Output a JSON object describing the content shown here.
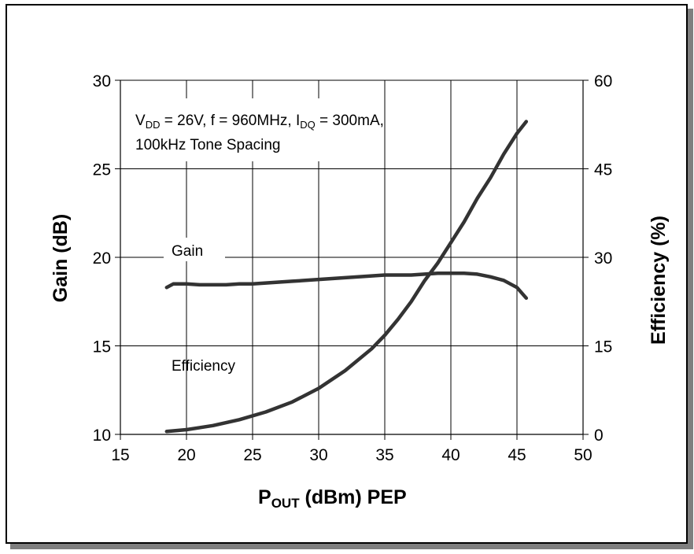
{
  "chart_data": {
    "type": "line",
    "title": "",
    "x_axis": {
      "label_main": "P",
      "label_sub": "OUT",
      "label_rest": " (dBm) PEP",
      "range": [
        15,
        50
      ],
      "ticks": [
        "15",
        "20",
        "25",
        "30",
        "35",
        "40",
        "45",
        "50"
      ]
    },
    "y_left": {
      "label": "Gain (dB)",
      "range": [
        10,
        30
      ],
      "ticks": [
        "10",
        "15",
        "20",
        "25",
        "30"
      ]
    },
    "y_right": {
      "label": "Efficiency (%)",
      "range": [
        0,
        60
      ],
      "ticks": [
        "0",
        "15",
        "30",
        "45",
        "60"
      ]
    },
    "grid": true,
    "annotation": {
      "vdd_main": "V",
      "vdd_sub": "DD",
      "vdd_rest": " = 26V, f = 960MHz,  I",
      "idq_sub": "DQ",
      "idq_rest": " = 300mA,",
      "line2": "100kHz Tone Spacing"
    },
    "series": [
      {
        "name": "Gain",
        "axis": "left",
        "x": [
          18.5,
          19,
          20,
          21,
          22,
          23,
          24,
          25,
          26,
          27,
          28,
          29,
          30,
          31,
          32,
          33,
          34,
          35,
          36,
          37,
          38,
          39,
          40,
          41,
          42,
          43,
          44,
          45,
          45.7
        ],
        "y": [
          18.3,
          18.5,
          18.5,
          18.45,
          18.45,
          18.45,
          18.5,
          18.5,
          18.55,
          18.6,
          18.65,
          18.7,
          18.75,
          18.8,
          18.85,
          18.9,
          18.95,
          19.0,
          19.0,
          19.0,
          19.05,
          19.1,
          19.1,
          19.1,
          19.05,
          18.9,
          18.7,
          18.3,
          17.7
        ]
      },
      {
        "name": "Efficiency",
        "axis": "right",
        "x": [
          18.5,
          20,
          22,
          24,
          26,
          28,
          30,
          32,
          34,
          35,
          36,
          37,
          38,
          39,
          40,
          41,
          42,
          43,
          44,
          45,
          45.7
        ],
        "y": [
          0.5,
          0.8,
          1.5,
          2.5,
          3.8,
          5.5,
          7.8,
          10.8,
          14.5,
          16.8,
          19.5,
          22.5,
          26.0,
          29.0,
          32.5,
          36.0,
          40.0,
          43.5,
          47.5,
          51.0,
          53.0
        ]
      }
    ],
    "series_labels": [
      "Gain",
      "Efficiency"
    ]
  }
}
